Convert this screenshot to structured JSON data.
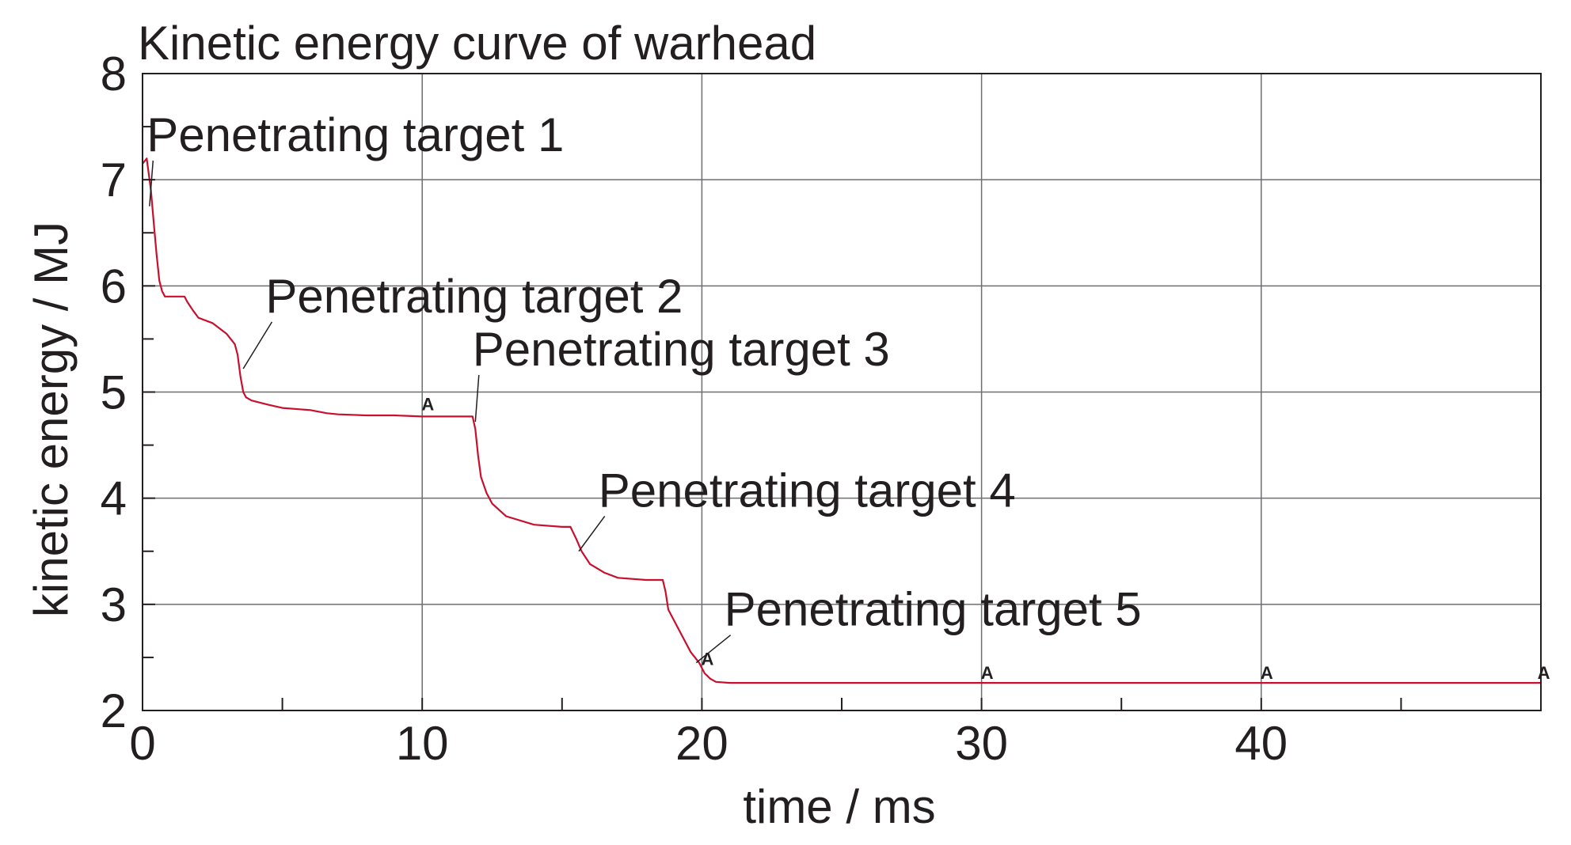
{
  "chart_data": {
    "type": "line",
    "title": "Kinetic energy curve of warhead",
    "xlabel": "time / ms",
    "ylabel": "kinetic energy / MJ",
    "xlim": [
      0,
      50
    ],
    "ylim": [
      2,
      8
    ],
    "x_ticks": [
      0,
      10,
      20,
      30,
      40
    ],
    "x_tick_labels": [
      "0",
      "10",
      "20",
      "30",
      "40"
    ],
    "x_minor_step": 5,
    "y_ticks": [
      2,
      3,
      4,
      5,
      6,
      7,
      8
    ],
    "y_tick_labels": [
      "2",
      "3",
      "4",
      "5",
      "6",
      "7",
      "8"
    ],
    "y_minor_step": 0.5,
    "grid": true,
    "line_color": "#c8102e",
    "series": [
      {
        "x": [
          0,
          0.15,
          0.3,
          0.4,
          0.5,
          0.6,
          0.7,
          0.8,
          1.0,
          1.5,
          1.6,
          1.8,
          2.0,
          2.5,
          3.0,
          3.3,
          3.4,
          3.5,
          3.6,
          3.7,
          3.9,
          4.5,
          5.0,
          6.0,
          6.6,
          7.0,
          8.0,
          9.0,
          10.0,
          11.0,
          11.8,
          11.9,
          12.0,
          12.1,
          12.3,
          12.5,
          13.0,
          14.0,
          15.0,
          15.3,
          15.5,
          15.7,
          16.0,
          16.5,
          17.0,
          18.0,
          18.6,
          18.7,
          18.8,
          19.0,
          19.3,
          19.6,
          19.9,
          20.1,
          20.3,
          20.5,
          21.0,
          22.0,
          25.0,
          30.0,
          35.0,
          40.0,
          45.0,
          50.0
        ],
        "y": [
          7.15,
          7.2,
          6.9,
          6.6,
          6.3,
          6.05,
          5.95,
          5.9,
          5.9,
          5.9,
          5.85,
          5.77,
          5.7,
          5.65,
          5.55,
          5.45,
          5.35,
          5.15,
          5.0,
          4.95,
          4.92,
          4.88,
          4.85,
          4.83,
          4.8,
          4.79,
          4.78,
          4.78,
          4.77,
          4.77,
          4.77,
          4.65,
          4.4,
          4.2,
          4.05,
          3.95,
          3.83,
          3.75,
          3.73,
          3.73,
          3.62,
          3.5,
          3.38,
          3.3,
          3.25,
          3.23,
          3.23,
          3.12,
          2.95,
          2.85,
          2.7,
          2.55,
          2.45,
          2.35,
          2.3,
          2.27,
          2.26,
          2.26,
          2.26,
          2.26,
          2.26,
          2.26,
          2.26,
          2.26
        ]
      }
    ],
    "annotations": [
      {
        "text": "Penetrating target 1",
        "x": 0.15,
        "y": 7.27,
        "point": [
          0.25,
          6.75
        ]
      },
      {
        "text": "Penetrating target 2",
        "x": 4.4,
        "y": 5.75,
        "point": [
          3.6,
          5.22
        ]
      },
      {
        "text": "Penetrating target 3",
        "x": 11.8,
        "y": 5.25,
        "point": [
          11.9,
          4.72
        ]
      },
      {
        "text": "Penetrating target 4",
        "x": 16.3,
        "y": 3.92,
        "point": [
          15.6,
          3.5
        ]
      },
      {
        "text": "Penetrating target 5",
        "x": 20.8,
        "y": 2.8,
        "point": [
          19.8,
          2.45
        ]
      }
    ],
    "markers": [
      {
        "text": "A",
        "x": 10.2,
        "y": 4.83
      },
      {
        "text": "A",
        "x": 20.2,
        "y": 2.43
      },
      {
        "text": "A",
        "x": 30.2,
        "y": 2.3
      },
      {
        "text": "A",
        "x": 40.2,
        "y": 2.3
      },
      {
        "text": "A",
        "x": 50.1,
        "y": 2.3
      }
    ]
  }
}
